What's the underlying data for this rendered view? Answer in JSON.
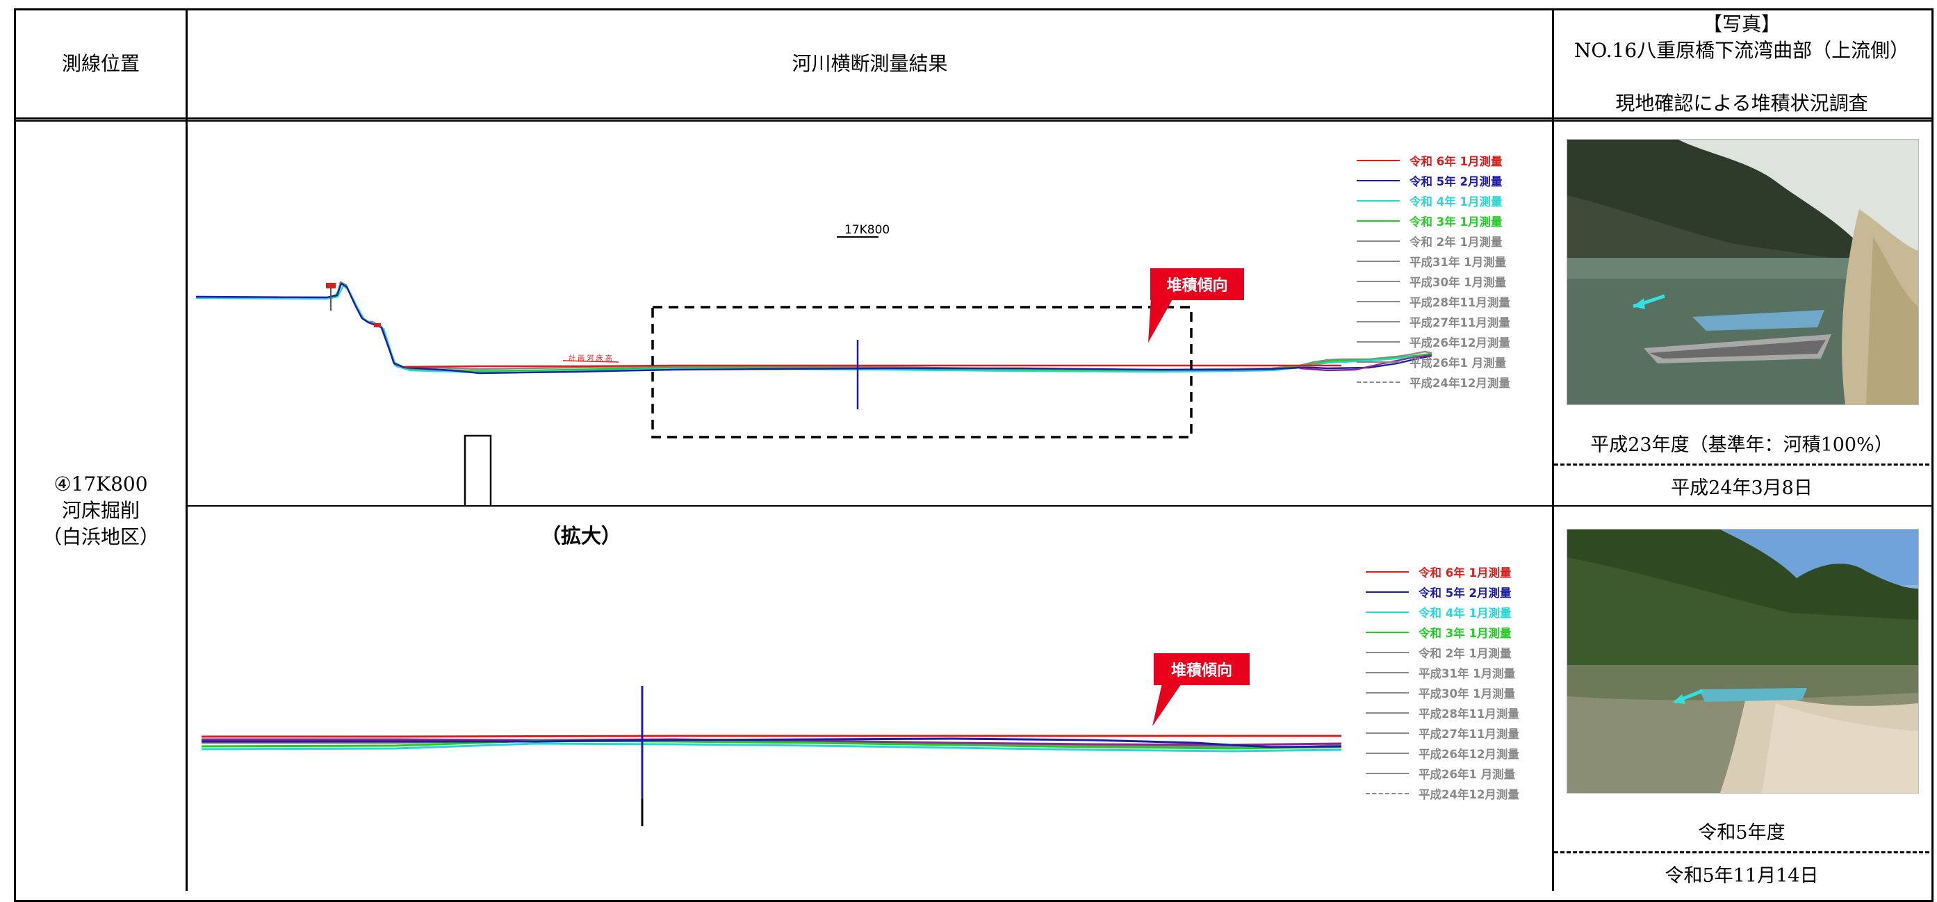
{
  "header": {
    "col1": "測線位置",
    "col2": "河川横断測量結果",
    "col3_line1": "【写真】",
    "col3_line2": "NO.16八重原橋下流湾曲部（上流側）",
    "col3_line3": "現地確認による堆積状況調査"
  },
  "location": {
    "line1": "④17K800",
    "line2": "河床掘削",
    "line3": "（白浜地区）"
  },
  "section_label": "17K800",
  "callout_text": "堆積傾向",
  "zoom_label": "（拡大）",
  "legend": [
    {
      "label": "令和 6年 1月測量",
      "color": "#d62020"
    },
    {
      "label": "令和 5年 2月測量",
      "color": "#1c1ca8"
    },
    {
      "label": "令和 4年 1月測量",
      "color": "#29d6d6"
    },
    {
      "label": "令和 3年 1月測量",
      "color": "#22cc22"
    },
    {
      "label": "令和 2年 1月測量",
      "color": "#888888"
    },
    {
      "label": "平成31年 1月測量",
      "color": "#888888"
    },
    {
      "label": "平成30年 1月測量",
      "color": "#888888"
    },
    {
      "label": "平成28年11月測量",
      "color": "#888888"
    },
    {
      "label": "平成27年11月測量",
      "color": "#888888"
    },
    {
      "label": "平成26年12月測量",
      "color": "#888888"
    },
    {
      "label": "平成26年1 月測量",
      "color": "#888888"
    },
    {
      "label": "平成24年12月測量",
      "color": "#888888"
    }
  ],
  "photo1": {
    "caption1": "平成23年度（基準年：河積100%）",
    "caption2": "平成24年3月8日"
  },
  "photo2": {
    "caption1": "令和5年度",
    "caption2": "令和5年11月14日"
  }
}
